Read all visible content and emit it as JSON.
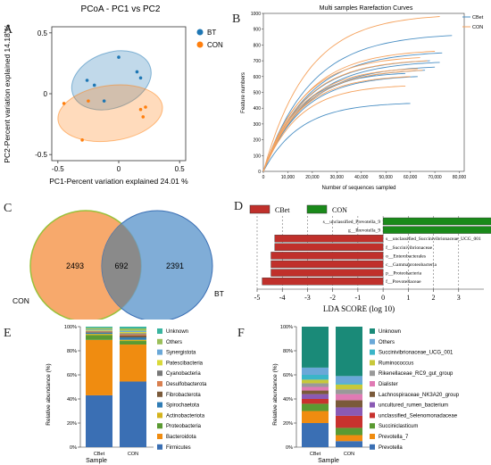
{
  "panel_labels": [
    "A",
    "B",
    "C",
    "D",
    "E",
    "F"
  ],
  "chart_data": [
    {
      "panel": "A",
      "type": "scatter",
      "title": "PCoA - PC1 vs PC2",
      "xlabel": "PC1-Percent variation explained 24.01 %",
      "ylabel": "PC2-Percent variation explained 14.18 %",
      "xlim": [
        -0.55,
        0.55
      ],
      "ylim": [
        -0.55,
        0.55
      ],
      "xticks": [
        "-0.5",
        "0",
        "0.5"
      ],
      "yticks": [
        "0.5",
        "0",
        "-0.5"
      ],
      "legend_position": "top-right",
      "series": [
        {
          "name": "BT",
          "color": "#1f77b4",
          "points": [
            [
              -0.26,
              0.11
            ],
            [
              -0.2,
              0.07
            ],
            [
              -0.12,
              -0.06
            ],
            [
              0.0,
              0.3
            ],
            [
              0.15,
              0.18
            ],
            [
              0.18,
              0.13
            ]
          ]
        },
        {
          "name": "CON",
          "color": "#ff7f0e",
          "points": [
            [
              -0.45,
              -0.08
            ],
            [
              -0.3,
              -0.38
            ],
            [
              -0.25,
              -0.06
            ],
            [
              0.18,
              -0.13
            ],
            [
              0.22,
              -0.11
            ],
            [
              0.2,
              -0.19
            ]
          ]
        }
      ]
    },
    {
      "panel": "B",
      "type": "line",
      "title": "Multi samples Rarefaction Curves",
      "xlabel": "Number of sequences sampled",
      "ylabel": "Feature numbers",
      "xlim": [
        0,
        82000
      ],
      "ylim": [
        0,
        1000
      ],
      "xticks": [
        "0",
        "10,000",
        "20,000",
        "30,000",
        "40,000",
        "50,000",
        "60,000",
        "70,000",
        "80,000"
      ],
      "yticks": [
        "0",
        "100",
        "200",
        "300",
        "400",
        "500",
        "600",
        "700",
        "800",
        "900",
        "1000"
      ],
      "legend_position": "top-right",
      "series": [
        {
          "name": "CBet",
          "color": "#4a8fc4",
          "curves": [
            [
              60000,
              430
            ],
            [
              63000,
              600
            ],
            [
              66000,
              640
            ],
            [
              70000,
              660
            ],
            [
              72000,
              690
            ],
            [
              77000,
              860
            ],
            [
              68000,
              700
            ],
            [
              58000,
              620
            ],
            [
              73000,
              750
            ]
          ]
        },
        {
          "name": "CON",
          "color": "#f5a25d",
          "curves": [
            [
              72000,
              980
            ],
            [
              65000,
              640
            ],
            [
              60000,
              600
            ],
            [
              63000,
              650
            ],
            [
              67000,
              700
            ],
            [
              58000,
              540
            ],
            [
              64000,
              720
            ],
            [
              70000,
              760
            ]
          ]
        }
      ]
    },
    {
      "panel": "C",
      "type": "venn",
      "sets": [
        {
          "name": "CON",
          "only": 2493
        },
        {
          "name": "BT",
          "only": 2391
        }
      ],
      "intersection": 692
    },
    {
      "panel": "D",
      "type": "bar",
      "xlabel": "LDA SCORE (log 10)",
      "xlim": [
        -5,
        4
      ],
      "xticks": [
        "-5",
        "-4",
        "-3",
        "-2",
        "-1",
        "0",
        "1",
        "2",
        "3"
      ],
      "legend_position": "top",
      "groups": [
        {
          "name": "CBet",
          "color": "#c0302b"
        },
        {
          "name": "CON",
          "color": "#1a8a1a"
        }
      ],
      "bars": [
        {
          "label": "s__unclassified_Prevotella_9",
          "group": "CON",
          "value": 4.4
        },
        {
          "label": "g__Prevotella_9",
          "group": "CON",
          "value": 4.4
        },
        {
          "label": "s__unclassified_Succinivibrionaceae_UCG_001",
          "group": "CBet",
          "value": -4.3
        },
        {
          "label": "f__Succinivibrionaceae",
          "group": "CBet",
          "value": -4.3
        },
        {
          "label": "o__Enterobacterales",
          "group": "CBet",
          "value": -4.45
        },
        {
          "label": "c__Gammaproteobacteria",
          "group": "CBet",
          "value": -4.45
        },
        {
          "label": "p__Proteobacteria",
          "group": "CBet",
          "value": -4.45
        },
        {
          "label": "f__Prevotellaceae",
          "group": "CBet",
          "value": -4.8
        }
      ]
    },
    {
      "panel": "E",
      "type": "bar",
      "stacked": true,
      "xlabel": "Sample",
      "ylabel": "Relative abundance (%)",
      "yticks": [
        "0%",
        "20%",
        "40%",
        "60%",
        "80%",
        "100%"
      ],
      "categories": [
        "CBet",
        "CON"
      ],
      "legend": [
        "Unknown",
        "Others",
        "Synergistota",
        "Patescibacteria",
        "Cyanobacteria",
        "Desulfobacterota",
        "Fibrobacterota",
        "Spirochaetota",
        "Actinobacteriota",
        "Proteobacteria",
        "Bacteroidota",
        "Firmicutes"
      ],
      "series": [
        {
          "name": "Firmicutes",
          "color": "#3a6fb4",
          "values": [
            43,
            55
          ]
        },
        {
          "name": "Bacteroidota",
          "color": "#f08c10",
          "values": [
            46,
            31
          ]
        },
        {
          "name": "Proteobacteria",
          "color": "#5a9a32",
          "values": [
            4,
            3
          ]
        },
        {
          "name": "Actinobacteriota",
          "color": "#d4b31c",
          "values": [
            1,
            1
          ]
        },
        {
          "name": "Spirochaetota",
          "color": "#2f7cb5",
          "values": [
            1,
            2
          ]
        },
        {
          "name": "Fibrobacterota",
          "color": "#7a5a3a",
          "values": [
            0.5,
            1.5
          ]
        },
        {
          "name": "Desulfobacterota",
          "color": "#d98050",
          "values": [
            0.5,
            1
          ]
        },
        {
          "name": "Cyanobacteria",
          "color": "#777777",
          "values": [
            0.5,
            1
          ]
        },
        {
          "name": "Patescibacteria",
          "color": "#d9d93a",
          "values": [
            0.5,
            1
          ]
        },
        {
          "name": "Synergistota",
          "color": "#6aa8d8",
          "values": [
            0.5,
            1
          ]
        },
        {
          "name": "Others",
          "color": "#9bbf5a",
          "values": [
            1.5,
            2
          ]
        },
        {
          "name": "Unknown",
          "color": "#3ab5a0",
          "values": [
            1,
            1.5
          ]
        }
      ]
    },
    {
      "panel": "F",
      "type": "bar",
      "stacked": true,
      "xlabel": "Sample",
      "ylabel": "Relative abundance (%)",
      "yticks": [
        "0%",
        "20%",
        "40%",
        "60%",
        "80%",
        "100%"
      ],
      "categories": [
        "CBet",
        "CON"
      ],
      "legend": [
        "Unknown",
        "Others",
        "Succinivibrionaceae_UCG_001",
        "Ruminococcus",
        "Rikenellaceae_RC9_gut_group",
        "Dialister",
        "Lachnospiraceae_NK3A20_group",
        "uncultured_rumen_bacterium",
        "unclassified_Selenomonadaceae",
        "Succiniclasticum",
        "Prevotella_7",
        "Prevotella"
      ],
      "series": [
        {
          "name": "Prevotella",
          "color": "#3a6fb4",
          "values": [
            20,
            5
          ]
        },
        {
          "name": "Prevotella_7",
          "color": "#f08c10",
          "values": [
            10,
            5
          ]
        },
        {
          "name": "Succiniclasticum",
          "color": "#5a9a32",
          "values": [
            6,
            6
          ]
        },
        {
          "name": "unclassified_Selenomonadaceae",
          "color": "#c8322e",
          "values": [
            4,
            10
          ]
        },
        {
          "name": "uncultured_rumen_bacterium",
          "color": "#8a5ab4",
          "values": [
            4,
            7
          ]
        },
        {
          "name": "Lachnospiraceae_NK3A20_group",
          "color": "#7a5a3a",
          "values": [
            3,
            6
          ]
        },
        {
          "name": "Dialister",
          "color": "#e07ab4",
          "values": [
            3,
            5
          ]
        },
        {
          "name": "Rikenellaceae_RC9_gut_group",
          "color": "#999999",
          "values": [
            3,
            4
          ]
        },
        {
          "name": "Ruminococcus",
          "color": "#c8c83a",
          "values": [
            3,
            4
          ]
        },
        {
          "name": "Succinivibrionaceae_UCG_001",
          "color": "#3ab5c8",
          "values": [
            4,
            1
          ]
        },
        {
          "name": "Others",
          "color": "#6aa8d8",
          "values": [
            6,
            6
          ]
        },
        {
          "name": "Unknown",
          "color": "#1a8a78",
          "values": [
            34,
            41
          ]
        }
      ]
    }
  ]
}
